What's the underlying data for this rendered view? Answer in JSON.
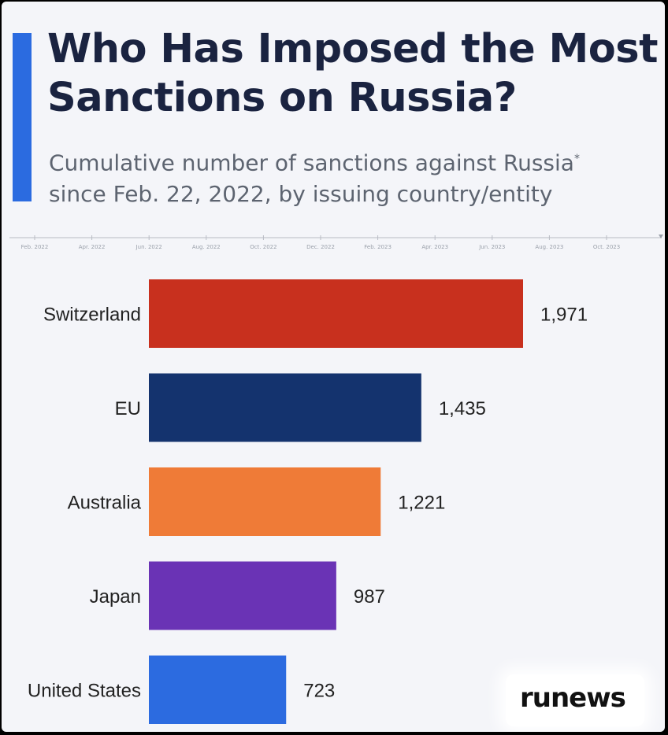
{
  "colors": {
    "background": "#f4f5f9",
    "title": "#1a2340",
    "subtitle": "#5d6470",
    "accent": "#2b6be0",
    "label": "#222222"
  },
  "timeline": {
    "ticks": [
      "Feb. 2022",
      "Apr. 2022",
      "Jun. 2022",
      "Aug. 2022",
      "Oct. 2022",
      "Dec. 2022",
      "Feb. 2023",
      "Apr. 2023",
      "Jun. 2023",
      "Aug. 2023",
      "Oct. 2023"
    ]
  },
  "watermark": {
    "text": "runews"
  },
  "chart_data": {
    "type": "bar",
    "orientation": "horizontal",
    "title": "Who Has Imposed the Most Sanctions on Russia?",
    "subtitle_line1": "Cumulative number of sanctions against Russia",
    "subtitle_marker": "*",
    "subtitle_line2": "since Feb. 22, 2022, by issuing country/entity",
    "categories": [
      "Switzerland",
      "EU",
      "Australia",
      "Japan",
      "United States"
    ],
    "values": [
      1971,
      1435,
      1221,
      987,
      723
    ],
    "value_labels": [
      "1,971",
      "1,435",
      "1,221",
      "987",
      "723"
    ],
    "bar_colors": [
      "#c8301e",
      "#14336e",
      "#ef7b37",
      "#6a33b5",
      "#2c6be0"
    ],
    "xlim": [
      0,
      1971
    ],
    "grid": false,
    "legend": "none"
  }
}
